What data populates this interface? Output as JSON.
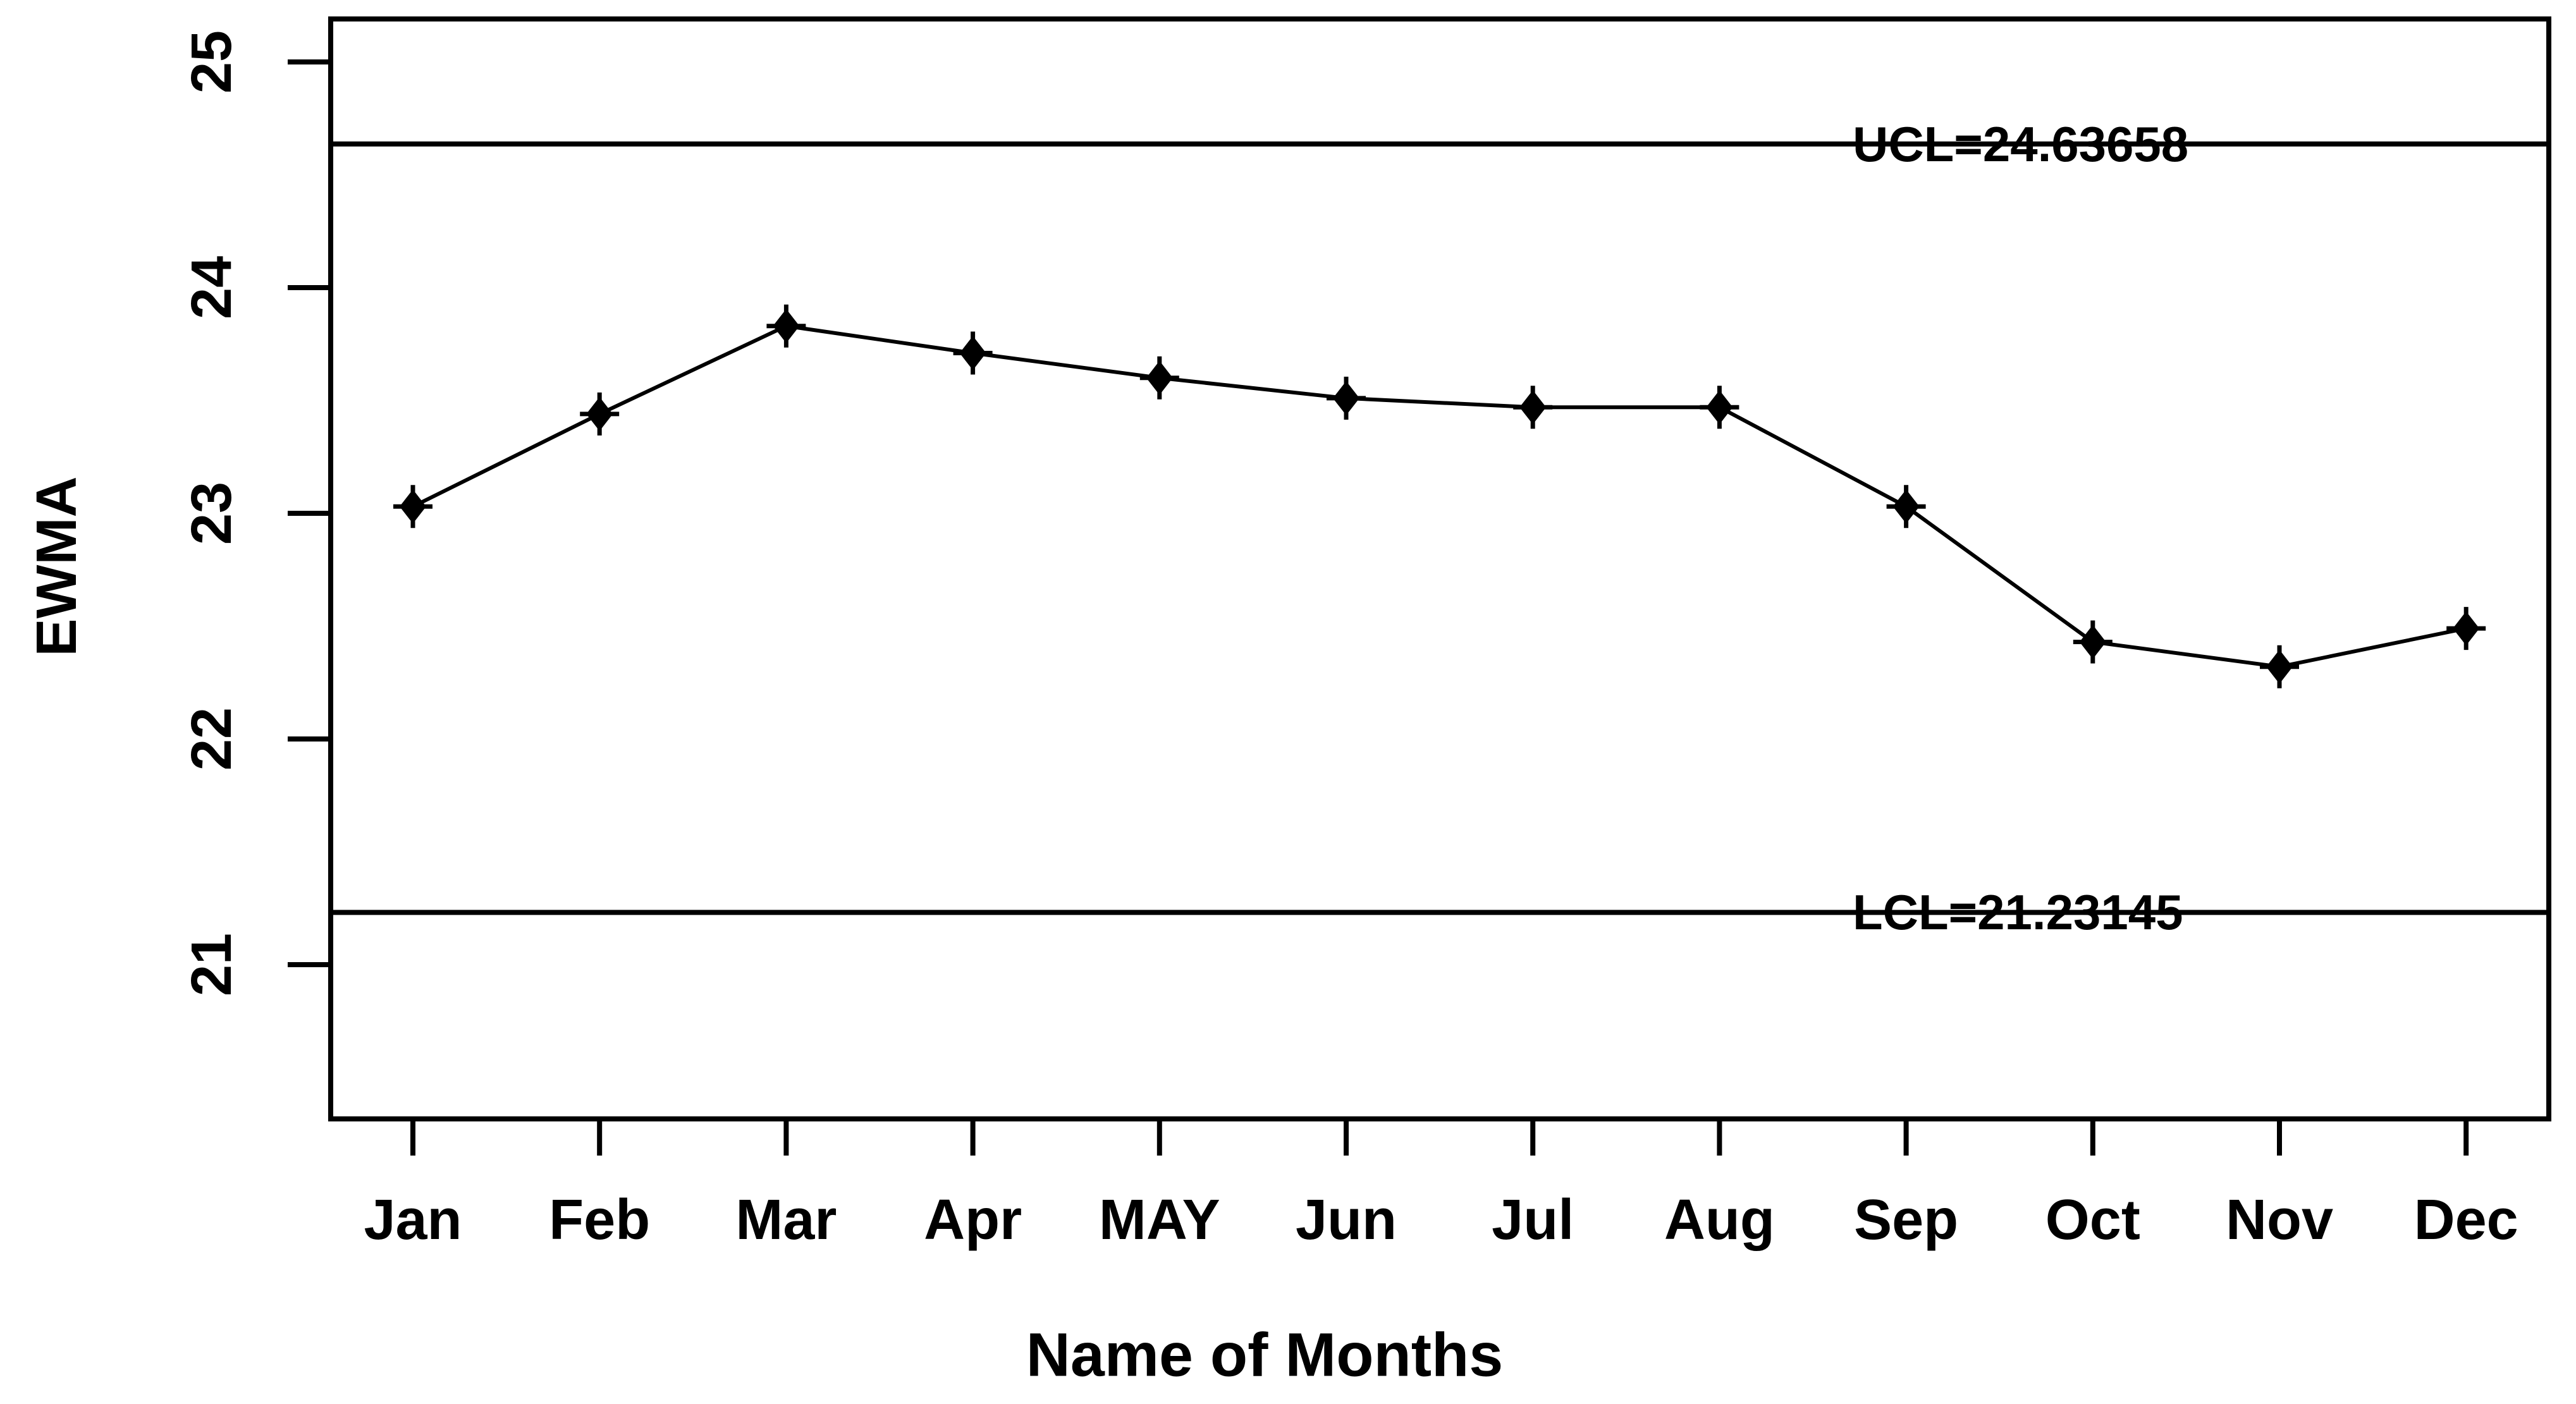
{
  "chart_data": {
    "type": "line",
    "title": "",
    "xlabel": "Name of Months",
    "ylabel": "EWMA",
    "categories": [
      "Jan",
      "Feb",
      "Mar",
      "Apr",
      "MAY",
      "Jun",
      "Jul",
      "Aug",
      "Sep",
      "Oct",
      "Nov",
      "Dec"
    ],
    "series": [
      {
        "name": "EWMA",
        "values": [
          23.03,
          23.44,
          23.83,
          23.71,
          23.6,
          23.51,
          23.47,
          23.47,
          23.03,
          22.43,
          22.32,
          22.49
        ]
      }
    ],
    "control_limits": {
      "ucl_value": 24.63658,
      "lcl_value": 21.23145,
      "ucl_label": "UCL=24.63658",
      "lcl_label": "LCL=21.23145"
    },
    "y_ticks": [
      25,
      24,
      23,
      22,
      21
    ],
    "ylim": [
      20.55,
      25.15
    ],
    "grid": false,
    "legend": "none",
    "marker": "diamond",
    "line_style": "solid",
    "colors": {
      "line": "#000000",
      "marker": "#000000",
      "frame": "#000000",
      "text": "#000000",
      "background": "#ffffff"
    }
  }
}
